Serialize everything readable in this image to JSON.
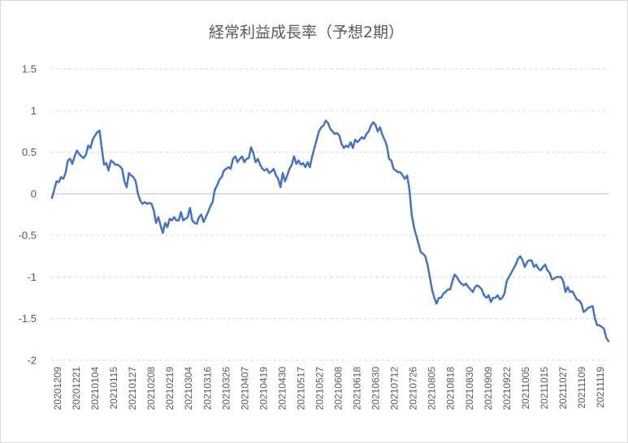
{
  "chart_data": {
    "type": "line",
    "title": "経常利益成長率（予想2期）",
    "xlabel": "",
    "ylabel": "",
    "ylim": [
      -2,
      1.5
    ],
    "yticks": [
      1.5,
      1,
      0.5,
      0,
      -0.5,
      -1,
      -1.5,
      -2
    ],
    "ytick_labels": [
      "1.5",
      "1",
      "0.5",
      "0",
      "-0.5",
      "-1",
      "-1.5",
      "-2"
    ],
    "grid": true,
    "legend": "none",
    "line_color": "#4472C4",
    "x_tick_labels": [
      "20201209",
      "20201221",
      "20210104",
      "20210115",
      "20210127",
      "20210208",
      "20210219",
      "20210304",
      "20210316",
      "20210326",
      "20210407",
      "20210419",
      "20210430",
      "20210517",
      "20210527",
      "20210608",
      "20210618",
      "20210630",
      "20210712",
      "20210726",
      "20210805",
      "20210818",
      "20210830",
      "20210909",
      "20210922",
      "20211005",
      "20211015",
      "20211027",
      "20211109",
      "20211119"
    ],
    "series": [
      {
        "values": [
          -0.05,
          0.05,
          0.15,
          0.14,
          0.2,
          0.18,
          0.25,
          0.4,
          0.42,
          0.36,
          0.45,
          0.52,
          0.48,
          0.45,
          0.43,
          0.47,
          0.58,
          0.55,
          0.65,
          0.7,
          0.74,
          0.76,
          0.55,
          0.35,
          0.37,
          0.28,
          0.4,
          0.38,
          0.35,
          0.35,
          0.33,
          0.3,
          0.15,
          0.08,
          0.25,
          0.22,
          0.2,
          0.15,
          0.0,
          -0.08,
          -0.12,
          -0.1,
          -0.12,
          -0.11,
          -0.12,
          -0.2,
          -0.35,
          -0.28,
          -0.38,
          -0.47,
          -0.35,
          -0.4,
          -0.3,
          -0.32,
          -0.28,
          -0.32,
          -0.32,
          -0.22,
          -0.32,
          -0.3,
          -0.28,
          -0.17,
          -0.32,
          -0.35,
          -0.36,
          -0.28,
          -0.25,
          -0.34,
          -0.28,
          -0.22,
          -0.15,
          -0.1,
          0.05,
          0.1,
          0.17,
          0.2,
          0.28,
          0.3,
          0.32,
          0.3,
          0.42,
          0.45,
          0.38,
          0.42,
          0.45,
          0.38,
          0.42,
          0.43,
          0.56,
          0.49,
          0.38,
          0.42,
          0.35,
          0.3,
          0.28,
          0.3,
          0.25,
          0.27,
          0.3,
          0.22,
          0.18,
          0.08,
          0.25,
          0.15,
          0.22,
          0.3,
          0.35,
          0.45,
          0.36,
          0.4,
          0.35,
          0.37,
          0.32,
          0.38,
          0.32,
          0.45,
          0.55,
          0.65,
          0.75,
          0.8,
          0.82,
          0.88,
          0.85,
          0.78,
          0.75,
          0.72,
          0.73,
          0.7,
          0.6,
          0.55,
          0.58,
          0.56,
          0.62,
          0.55,
          0.65,
          0.62,
          0.65,
          0.68,
          0.66,
          0.72,
          0.75,
          0.82,
          0.86,
          0.83,
          0.75,
          0.8,
          0.71,
          0.65,
          0.58,
          0.42,
          0.4,
          0.3,
          0.28,
          0.26,
          0.26,
          0.22,
          0.18,
          0.22,
          0.05,
          -0.25,
          -0.4,
          -0.5,
          -0.6,
          -0.7,
          -0.72,
          -0.75,
          -0.85,
          -1.0,
          -1.15,
          -1.25,
          -1.32,
          -1.25,
          -1.25,
          -1.2,
          -1.18,
          -1.15,
          -1.15,
          -1.05,
          -0.97,
          -1.0,
          -1.05,
          -1.08,
          -1.1,
          -1.08,
          -1.12,
          -1.15,
          -1.18,
          -1.12,
          -1.1,
          -1.12,
          -1.15,
          -1.22,
          -1.25,
          -1.22,
          -1.3,
          -1.25,
          -1.25,
          -1.22,
          -1.27,
          -1.25,
          -1.2,
          -1.05,
          -1.0,
          -0.95,
          -0.9,
          -0.85,
          -0.78,
          -0.75,
          -0.8,
          -0.88,
          -0.82,
          -0.8,
          -0.8,
          -0.88,
          -0.85,
          -0.9,
          -0.92,
          -0.88,
          -0.85,
          -0.92,
          -0.95,
          -1.03,
          -1.02,
          -1.0,
          -1.0,
          -1.0,
          -1.05,
          -1.18,
          -1.12,
          -1.18,
          -1.17,
          -1.22,
          -1.27,
          -1.28,
          -1.32,
          -1.42,
          -1.4,
          -1.37,
          -1.36,
          -1.35,
          -1.5,
          -1.58,
          -1.58,
          -1.6,
          -1.62,
          -1.73,
          -1.77
        ]
      }
    ]
  }
}
